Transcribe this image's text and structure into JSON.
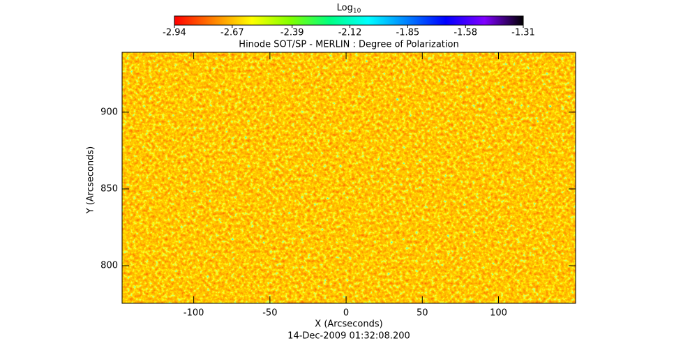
{
  "chart_data": {
    "type": "image",
    "title": "Hinode SOT/SP - MERLIN : Degree of Polarization",
    "xlabel": "X (Arcseconds)",
    "ylabel": "Y (Arcseconds)",
    "footer": "14-Dec-2009 01:32:08.200",
    "xlim": [
      -147,
      150.6
    ],
    "ylim": [
      775.5,
      939
    ],
    "xticks": [
      -100,
      -50,
      0,
      50,
      100
    ],
    "yticks": [
      800,
      850,
      900
    ],
    "colorbar": {
      "title": "Log",
      "title_subscript": "10",
      "lim": [
        -2.94,
        -1.31
      ],
      "ticks": [
        -2.94,
        -2.67,
        -2.39,
        -2.12,
        -1.85,
        -1.58,
        -1.31
      ],
      "colors": [
        "#ff0000",
        "#ff8000",
        "#ffff00",
        "#80ff00",
        "#00ff80",
        "#00ffff",
        "#0080ff",
        "#0000ff",
        "#8000ff",
        "#000000"
      ]
    }
  }
}
